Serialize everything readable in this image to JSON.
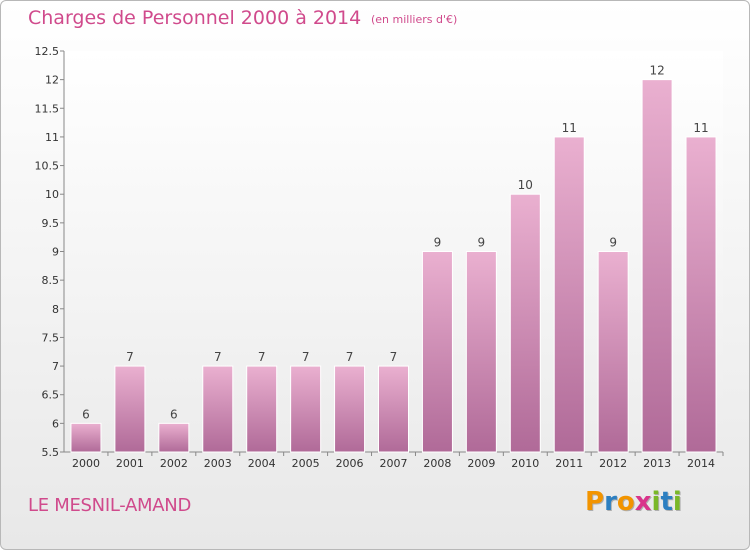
{
  "header": {
    "title": "Charges de Personnel 2000 à 2014",
    "unit": "(en milliers d'€)"
  },
  "footer": {
    "commune": "LE MESNIL-AMAND",
    "logo": {
      "letters": [
        "P",
        "r",
        "o",
        "x",
        "i",
        "t",
        "i"
      ],
      "colors": [
        "#f29400",
        "#2c7fc1",
        "#f29400",
        "#d9348b",
        "#7ab828",
        "#2c7fc1",
        "#7ab828"
      ]
    }
  },
  "colors": {
    "accent": "#d04a8c",
    "bar_top": "#eab0d0",
    "bar_bottom": "#b06a98",
    "axis_text": "#333333"
  },
  "chart_data": {
    "type": "bar",
    "title": "Charges de Personnel 2000 à 2014",
    "categories": [
      "2000",
      "2001",
      "2002",
      "2003",
      "2004",
      "2005",
      "2006",
      "2007",
      "2008",
      "2009",
      "2010",
      "2011",
      "2012",
      "2013",
      "2014"
    ],
    "values": [
      6,
      7,
      6,
      7,
      7,
      7,
      7,
      7,
      9,
      9,
      10,
      11,
      9,
      12,
      11
    ],
    "data_labels": [
      "6",
      "7",
      "6",
      "7",
      "7",
      "7",
      "7",
      "7",
      "9",
      "9",
      "10",
      "11",
      "9",
      "12",
      "11"
    ],
    "ylim": [
      5.5,
      12.5
    ],
    "yticks": [
      "5.5",
      "6",
      "6.5",
      "7",
      "7.5",
      "8",
      "8.5",
      "9",
      "9.5",
      "10",
      "10.5",
      "11",
      "11.5",
      "12",
      "12.5"
    ],
    "grid": false,
    "legend": "none"
  }
}
